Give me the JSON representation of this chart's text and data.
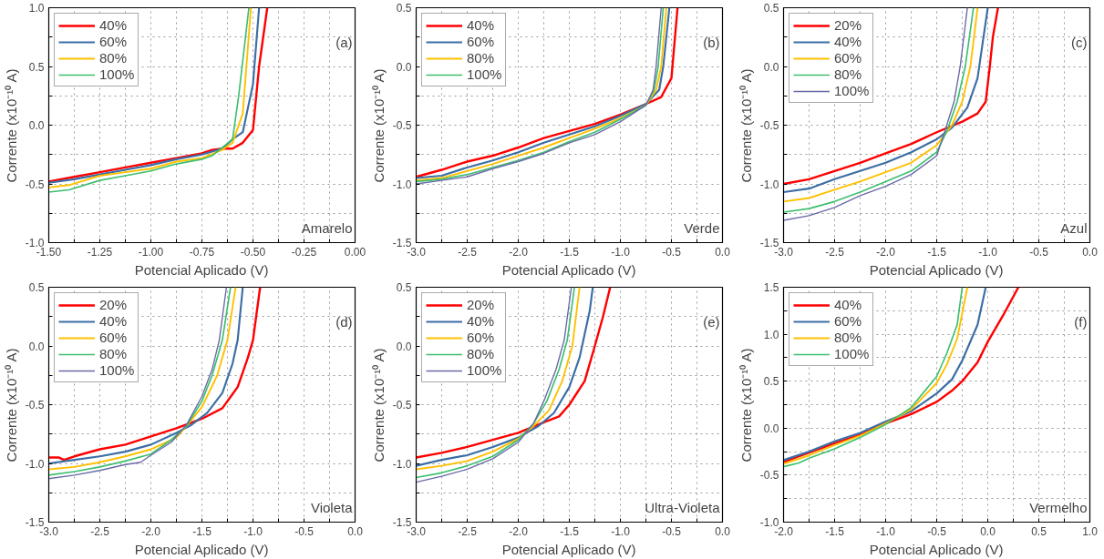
{
  "chart_data": [
    {
      "type": "line",
      "xlabel": "Potencial Aplicado (V)",
      "ylabel": "Corrente (x10⁻¹⁰ A)",
      "annotations": [
        "(a)",
        "Amarelo"
      ],
      "grid": true,
      "legend": "top left",
      "xlim": [
        -1.5,
        0.0
      ],
      "ylim": [
        -1.0,
        1.0
      ],
      "xticks": [
        {
          "value": -1.5,
          "label": "-1.50"
        },
        {
          "value": -1.375,
          "label": null
        },
        {
          "value": -1.25,
          "label": "-1.25"
        },
        {
          "value": -1.125,
          "label": null
        },
        {
          "value": -1.0,
          "label": "-1.00"
        },
        {
          "value": -0.875,
          "label": null
        },
        {
          "value": -0.75,
          "label": "-0.75"
        },
        {
          "value": -0.625,
          "label": null
        },
        {
          "value": -0.5,
          "label": "-0.50"
        },
        {
          "value": -0.375,
          "label": null
        },
        {
          "value": -0.25,
          "label": "-0.25"
        },
        {
          "value": -0.125,
          "label": null
        },
        {
          "value": 0.0,
          "label": "0.00"
        }
      ],
      "yticks": [
        {
          "value": -1.0,
          "label": "-1.0"
        },
        {
          "value": -0.75,
          "label": null
        },
        {
          "value": -0.5,
          "label": "-0.5"
        },
        {
          "value": -0.25,
          "label": null
        },
        {
          "value": 0.0,
          "label": "0.0"
        },
        {
          "value": 0.25,
          "label": null
        },
        {
          "value": 0.5,
          "label": "0.5"
        },
        {
          "value": 0.75,
          "label": null
        },
        {
          "value": 1.0,
          "label": "1.0"
        }
      ],
      "series": [
        {
          "name": "40%",
          "color": "#ff0000",
          "x": [
            -1.5,
            -1.375,
            -1.25,
            -1.125,
            -1.0,
            -0.875,
            -0.75,
            -0.7,
            -0.65,
            -0.6,
            -0.55,
            -0.5,
            -0.47,
            -0.43
          ],
          "values": [
            -0.48,
            -0.44,
            -0.4,
            -0.36,
            -0.32,
            -0.28,
            -0.24,
            -0.21,
            -0.2,
            -0.2,
            -0.15,
            -0.04,
            0.5,
            1.0
          ]
        },
        {
          "name": "60%",
          "color": "#3b6ea5",
          "x": [
            -1.5,
            -1.375,
            -1.25,
            -1.125,
            -1.0,
            -0.875,
            -0.75,
            -0.65,
            -0.6,
            -0.55,
            -0.5,
            -0.47
          ],
          "values": [
            -0.49,
            -0.46,
            -0.42,
            -0.38,
            -0.34,
            -0.29,
            -0.25,
            -0.2,
            -0.12,
            -0.06,
            0.35,
            1.0
          ]
        },
        {
          "name": "80%",
          "color": "#ffc000",
          "x": [
            -1.5,
            -1.4,
            -1.25,
            -1.125,
            -1.0,
            -0.875,
            -0.75,
            -0.65,
            -0.6,
            -0.55,
            -0.51
          ],
          "values": [
            -0.53,
            -0.51,
            -0.43,
            -0.4,
            -0.37,
            -0.31,
            -0.28,
            -0.21,
            -0.15,
            0.1,
            1.0
          ]
        },
        {
          "name": "100%",
          "color": "#3cbf6e",
          "x": [
            -1.5,
            -1.4,
            -1.25,
            -1.125,
            -1.0,
            -0.875,
            -0.75,
            -0.7,
            -0.6,
            -0.57,
            -0.52
          ],
          "values": [
            -0.57,
            -0.55,
            -0.47,
            -0.43,
            -0.39,
            -0.33,
            -0.29,
            -0.26,
            -0.12,
            0.25,
            1.0
          ]
        }
      ]
    },
    {
      "type": "line",
      "xlabel": "Potencial Aplicado (V)",
      "ylabel": "Corrente (x10⁻¹⁰ A)",
      "annotations": [
        "(b)",
        "Verde"
      ],
      "grid": true,
      "legend": "top left",
      "xlim": [
        -3.0,
        0.0
      ],
      "ylim": [
        -1.5,
        0.5
      ],
      "xticks": [
        {
          "value": -3.0,
          "label": "-3.0"
        },
        {
          "value": -2.75,
          "label": null
        },
        {
          "value": -2.5,
          "label": "-2.5"
        },
        {
          "value": -2.25,
          "label": null
        },
        {
          "value": -2.0,
          "label": "-2.0"
        },
        {
          "value": -1.75,
          "label": null
        },
        {
          "value": -1.5,
          "label": "-1.5"
        },
        {
          "value": -1.25,
          "label": null
        },
        {
          "value": -1.0,
          "label": "-1.0"
        },
        {
          "value": -0.75,
          "label": null
        },
        {
          "value": -0.5,
          "label": "-0.5"
        },
        {
          "value": -0.25,
          "label": null
        },
        {
          "value": 0.0,
          "label": "0.0"
        }
      ],
      "yticks": [
        {
          "value": -1.5,
          "label": "-1.5"
        },
        {
          "value": -1.25,
          "label": null
        },
        {
          "value": -1.0,
          "label": "-1.0"
        },
        {
          "value": -0.75,
          "label": null
        },
        {
          "value": -0.5,
          "label": "-0.5"
        },
        {
          "value": -0.25,
          "label": null
        },
        {
          "value": 0.0,
          "label": "0.0"
        },
        {
          "value": 0.25,
          "label": null
        },
        {
          "value": 0.5,
          "label": "0.5"
        }
      ],
      "series": [
        {
          "name": "40%",
          "color": "#ff0000",
          "x": [
            -3.0,
            -2.75,
            -2.5,
            -2.25,
            -2.0,
            -1.75,
            -1.5,
            -1.25,
            -1.0,
            -0.75,
            -0.6,
            -0.5,
            -0.44
          ],
          "values": [
            -0.94,
            -0.88,
            -0.81,
            -0.76,
            -0.69,
            -0.61,
            -0.55,
            -0.49,
            -0.41,
            -0.32,
            -0.26,
            -0.1,
            0.5
          ]
        },
        {
          "name": "60%",
          "color": "#3b6ea5",
          "x": [
            -3.0,
            -2.75,
            -2.5,
            -2.25,
            -2.0,
            -1.75,
            -1.5,
            -1.25,
            -1.0,
            -0.75,
            -0.62,
            -0.58,
            -0.52
          ],
          "values": [
            -0.95,
            -0.93,
            -0.86,
            -0.8,
            -0.73,
            -0.65,
            -0.58,
            -0.51,
            -0.42,
            -0.32,
            -0.2,
            0.0,
            0.5
          ]
        },
        {
          "name": "80%",
          "color": "#ffc000",
          "x": [
            -3.0,
            -2.75,
            -2.5,
            -2.25,
            -2.0,
            -1.75,
            -1.5,
            -1.25,
            -1.0,
            -0.75,
            -0.65,
            -0.6,
            -0.55
          ],
          "values": [
            -0.97,
            -0.95,
            -0.89,
            -0.83,
            -0.76,
            -0.69,
            -0.61,
            -0.53,
            -0.44,
            -0.33,
            -0.2,
            0.0,
            0.5
          ]
        },
        {
          "name": "100%",
          "color": "#3cbf6e",
          "x": [
            -3.0,
            -2.75,
            -2.5,
            -2.25,
            -2.0,
            -1.75,
            -1.5,
            -1.25,
            -1.0,
            -0.75,
            -0.67,
            -0.63,
            -0.58
          ],
          "values": [
            -0.98,
            -0.96,
            -0.92,
            -0.86,
            -0.8,
            -0.73,
            -0.64,
            -0.56,
            -0.45,
            -0.33,
            -0.2,
            0.0,
            0.5
          ]
        },
        {
          "color": "#6a6aa8",
          "x": [
            -3.0,
            -2.75,
            -2.5,
            -2.25,
            -2.0,
            -1.75,
            -1.5,
            -1.25,
            -1.0,
            -0.75,
            -0.68,
            -0.65,
            -0.6
          ],
          "values": [
            -1.0,
            -0.97,
            -0.94,
            -0.87,
            -0.81,
            -0.74,
            -0.65,
            -0.58,
            -0.47,
            -0.33,
            -0.2,
            0.0,
            0.5
          ]
        }
      ]
    },
    {
      "type": "line",
      "xlabel": "Potencial Aplicado (V)",
      "ylabel": "Corrente (x10⁻¹⁰ A)",
      "annotations": [
        "(c)",
        "Azul"
      ],
      "grid": true,
      "legend": "top left",
      "xlim": [
        -3.0,
        0.0
      ],
      "ylim": [
        -1.5,
        0.5
      ],
      "xticks": [
        {
          "value": -3.0,
          "label": "-3.0"
        },
        {
          "value": -2.75,
          "label": null
        },
        {
          "value": -2.5,
          "label": "-2.5"
        },
        {
          "value": -2.25,
          "label": null
        },
        {
          "value": -2.0,
          "label": "-2.0"
        },
        {
          "value": -1.75,
          "label": null
        },
        {
          "value": -1.5,
          "label": "-1.5"
        },
        {
          "value": -1.25,
          "label": null
        },
        {
          "value": -1.0,
          "label": "-1.0"
        },
        {
          "value": -0.75,
          "label": null
        },
        {
          "value": -0.5,
          "label": "-0.5"
        },
        {
          "value": -0.25,
          "label": null
        },
        {
          "value": 0.0,
          "label": "0.0"
        }
      ],
      "yticks": [
        {
          "value": -1.5,
          "label": "-1.5"
        },
        {
          "value": -1.25,
          "label": null
        },
        {
          "value": -1.0,
          "label": "-1.0"
        },
        {
          "value": -0.75,
          "label": null
        },
        {
          "value": -0.5,
          "label": "-0.5"
        },
        {
          "value": -0.25,
          "label": null
        },
        {
          "value": 0.0,
          "label": "0.0"
        },
        {
          "value": 0.25,
          "label": null
        },
        {
          "value": 0.5,
          "label": "0.5"
        }
      ],
      "series": [
        {
          "name": "20%",
          "color": "#ff0000",
          "x": [
            -3.0,
            -2.75,
            -2.5,
            -2.25,
            -2.0,
            -1.75,
            -1.5,
            -1.25,
            -1.1,
            -1.02,
            -0.98,
            -0.95,
            -0.9
          ],
          "values": [
            -1.0,
            -0.96,
            -0.89,
            -0.82,
            -0.74,
            -0.66,
            -0.56,
            -0.47,
            -0.4,
            -0.3,
            0.0,
            0.25,
            0.5
          ]
        },
        {
          "name": "40%",
          "color": "#3b6ea5",
          "x": [
            -3.0,
            -2.75,
            -2.5,
            -2.25,
            -2.0,
            -1.75,
            -1.5,
            -1.35,
            -1.2,
            -1.1,
            -1.05,
            -1.0
          ],
          "values": [
            -1.07,
            -1.04,
            -0.96,
            -0.89,
            -0.82,
            -0.73,
            -0.62,
            -0.52,
            -0.35,
            -0.1,
            0.2,
            0.5
          ]
        },
        {
          "name": "60%",
          "color": "#ffc000",
          "x": [
            -3.0,
            -2.75,
            -2.5,
            -2.25,
            -2.0,
            -1.75,
            -1.5,
            -1.35,
            -1.25,
            -1.17,
            -1.1
          ],
          "values": [
            -1.15,
            -1.12,
            -1.05,
            -0.98,
            -0.9,
            -0.82,
            -0.67,
            -0.5,
            -0.3,
            0.0,
            0.5
          ]
        },
        {
          "name": "80%",
          "color": "#3cbf6e",
          "x": [
            -3.0,
            -2.75,
            -2.5,
            -2.25,
            -2.0,
            -1.75,
            -1.5,
            -1.4,
            -1.3,
            -1.22,
            -1.14
          ],
          "values": [
            -1.24,
            -1.21,
            -1.15,
            -1.07,
            -0.98,
            -0.89,
            -0.73,
            -0.55,
            -0.3,
            0.0,
            0.5
          ]
        },
        {
          "name": "100%",
          "color": "#6a6aa8",
          "x": [
            -3.0,
            -2.75,
            -2.5,
            -2.25,
            -2.0,
            -1.75,
            -1.5,
            -1.42,
            -1.33,
            -1.27,
            -1.2
          ],
          "values": [
            -1.31,
            -1.27,
            -1.2,
            -1.1,
            -1.02,
            -0.92,
            -0.76,
            -0.55,
            -0.3,
            0.0,
            0.5
          ]
        }
      ]
    },
    {
      "type": "line",
      "xlabel": "Potencial Aplicado (V)",
      "ylabel": "Corrente (x10⁻¹⁰ A)",
      "annotations": [
        "(d)",
        "Violeta"
      ],
      "grid": true,
      "legend": "top left",
      "xlim": [
        -3.0,
        0.0
      ],
      "ylim": [
        -1.5,
        0.5
      ],
      "xticks": [
        {
          "value": -3.0,
          "label": "-3.0"
        },
        {
          "value": -2.75,
          "label": null
        },
        {
          "value": -2.5,
          "label": "-2.5"
        },
        {
          "value": -2.25,
          "label": null
        },
        {
          "value": -2.0,
          "label": "-2.0"
        },
        {
          "value": -1.75,
          "label": null
        },
        {
          "value": -1.5,
          "label": "-1.5"
        },
        {
          "value": -1.25,
          "label": null
        },
        {
          "value": -1.0,
          "label": "-1.0"
        },
        {
          "value": -0.75,
          "label": null
        },
        {
          "value": -0.5,
          "label": "-0.5"
        },
        {
          "value": -0.25,
          "label": null
        },
        {
          "value": 0.0,
          "label": "0.0"
        }
      ],
      "yticks": [
        {
          "value": -1.5,
          "label": "-1.5"
        },
        {
          "value": -1.25,
          "label": null
        },
        {
          "value": -1.0,
          "label": "-1.0"
        },
        {
          "value": -0.75,
          "label": null
        },
        {
          "value": -0.5,
          "label": "-0.5"
        },
        {
          "value": -0.25,
          "label": null
        },
        {
          "value": 0.0,
          "label": "0.0"
        },
        {
          "value": 0.25,
          "label": null
        },
        {
          "value": 0.5,
          "label": "0.5"
        }
      ],
      "series": [
        {
          "name": "20%",
          "color": "#ff0000",
          "x": [
            -3.0,
            -2.9,
            -2.85,
            -2.75,
            -2.5,
            -2.25,
            -2.0,
            -1.75,
            -1.5,
            -1.3,
            -1.15,
            -1.05,
            -1.0,
            -0.93
          ],
          "values": [
            -0.95,
            -0.95,
            -0.97,
            -0.94,
            -0.88,
            -0.84,
            -0.77,
            -0.7,
            -0.62,
            -0.53,
            -0.35,
            -0.1,
            0.05,
            0.5
          ]
        },
        {
          "name": "40%",
          "color": "#3b6ea5",
          "x": [
            -3.0,
            -2.75,
            -2.5,
            -2.25,
            -2.0,
            -1.75,
            -1.6,
            -1.45,
            -1.3,
            -1.2,
            -1.15,
            -1.1
          ],
          "values": [
            -1.0,
            -0.97,
            -0.94,
            -0.9,
            -0.84,
            -0.74,
            -0.67,
            -0.57,
            -0.4,
            -0.15,
            0.05,
            0.5
          ]
        },
        {
          "name": "60%",
          "color": "#ffc000",
          "x": [
            -3.0,
            -2.75,
            -2.5,
            -2.25,
            -2.0,
            -1.75,
            -1.65,
            -1.5,
            -1.35,
            -1.25,
            -1.17
          ],
          "values": [
            -1.05,
            -1.03,
            -0.99,
            -0.94,
            -0.88,
            -0.78,
            -0.68,
            -0.52,
            -0.25,
            0.05,
            0.5
          ]
        },
        {
          "name": "80%",
          "color": "#3cbf6e",
          "x": [
            -3.0,
            -2.75,
            -2.5,
            -2.25,
            -2.0,
            -1.8,
            -1.65,
            -1.5,
            -1.4,
            -1.3,
            -1.22
          ],
          "values": [
            -1.1,
            -1.07,
            -1.03,
            -0.98,
            -0.92,
            -0.8,
            -0.68,
            -0.47,
            -0.25,
            0.05,
            0.5
          ]
        },
        {
          "name": "100%",
          "color": "#6a6aa8",
          "x": [
            -3.0,
            -2.75,
            -2.5,
            -2.25,
            -2.1,
            -2.0,
            -1.8,
            -1.65,
            -1.5,
            -1.4,
            -1.33,
            -1.26
          ],
          "values": [
            -1.13,
            -1.1,
            -1.06,
            -1.01,
            -0.99,
            -0.93,
            -0.82,
            -0.67,
            -0.43,
            -0.2,
            0.05,
            0.5
          ]
        }
      ]
    },
    {
      "type": "line",
      "xlabel": "Potencial Aplicado (V)",
      "ylabel": "Corrente (x10⁻¹⁰ A)",
      "annotations": [
        "(e)",
        "Ultra-Violeta"
      ],
      "grid": true,
      "legend": "top left",
      "xlim": [
        -3.0,
        0.0
      ],
      "ylim": [
        -1.5,
        0.5
      ],
      "xticks": [
        {
          "value": -3.0,
          "label": "-3.0"
        },
        {
          "value": -2.75,
          "label": null
        },
        {
          "value": -2.5,
          "label": "-2.5"
        },
        {
          "value": -2.25,
          "label": null
        },
        {
          "value": -2.0,
          "label": "-2.0"
        },
        {
          "value": -1.75,
          "label": null
        },
        {
          "value": -1.5,
          "label": "-1.5"
        },
        {
          "value": -1.25,
          "label": null
        },
        {
          "value": -1.0,
          "label": "-1.0"
        },
        {
          "value": -0.75,
          "label": null
        },
        {
          "value": -0.5,
          "label": "-0.5"
        },
        {
          "value": -0.25,
          "label": null
        },
        {
          "value": 0.0,
          "label": "0.0"
        }
      ],
      "yticks": [
        {
          "value": -1.5,
          "label": "-1.5"
        },
        {
          "value": -1.25,
          "label": null
        },
        {
          "value": -1.0,
          "label": "-1.0"
        },
        {
          "value": -0.75,
          "label": null
        },
        {
          "value": -0.5,
          "label": "-0.5"
        },
        {
          "value": -0.25,
          "label": null
        },
        {
          "value": 0.0,
          "label": "0.0"
        },
        {
          "value": 0.25,
          "label": null
        },
        {
          "value": 0.5,
          "label": "0.5"
        }
      ],
      "series": [
        {
          "name": "20%",
          "color": "#ff0000",
          "x": [
            -3.0,
            -2.75,
            -2.5,
            -2.25,
            -2.0,
            -1.75,
            -1.6,
            -1.5,
            -1.35,
            -1.25,
            -1.17,
            -1.1
          ],
          "values": [
            -0.95,
            -0.91,
            -0.86,
            -0.8,
            -0.74,
            -0.65,
            -0.6,
            -0.5,
            -0.3,
            0.0,
            0.25,
            0.5
          ]
        },
        {
          "name": "40%",
          "color": "#3b6ea5",
          "x": [
            -3.0,
            -2.75,
            -2.5,
            -2.25,
            -2.0,
            -1.8,
            -1.65,
            -1.5,
            -1.4,
            -1.3,
            -1.27
          ],
          "values": [
            -1.02,
            -0.97,
            -0.93,
            -0.86,
            -0.78,
            -0.68,
            -0.57,
            -0.35,
            -0.1,
            0.3,
            0.5
          ]
        },
        {
          "name": "60%",
          "color": "#ffc000",
          "x": [
            -3.0,
            -2.75,
            -2.5,
            -2.25,
            -2.0,
            -1.85,
            -1.7,
            -1.57,
            -1.47,
            -1.4
          ],
          "values": [
            -1.05,
            -1.02,
            -0.98,
            -0.9,
            -0.79,
            -0.68,
            -0.55,
            -0.3,
            0.0,
            0.5
          ]
        },
        {
          "name": "80%",
          "color": "#3cbf6e",
          "x": [
            -3.0,
            -2.75,
            -2.5,
            -2.25,
            -2.0,
            -1.85,
            -1.72,
            -1.6,
            -1.52,
            -1.45
          ],
          "values": [
            -1.12,
            -1.08,
            -1.02,
            -0.94,
            -0.8,
            -0.66,
            -0.47,
            -0.2,
            0.05,
            0.5
          ]
        },
        {
          "name": "100%",
          "color": "#6a6aa8",
          "x": [
            -3.0,
            -2.75,
            -2.5,
            -2.25,
            -2.0,
            -1.85,
            -1.75,
            -1.63,
            -1.55,
            -1.48
          ],
          "values": [
            -1.16,
            -1.11,
            -1.05,
            -0.96,
            -0.82,
            -0.66,
            -0.47,
            -0.2,
            0.05,
            0.5
          ]
        }
      ]
    },
    {
      "type": "line",
      "xlabel": "Potencial Aplicado (V)",
      "ylabel": "Corrente (x10⁻¹⁰ A)",
      "annotations": [
        "(f)",
        "Vermelho"
      ],
      "grid": true,
      "legend": "top left",
      "xlim": [
        -2.0,
        1.0
      ],
      "ylim": [
        -1.0,
        1.5
      ],
      "xticks": [
        {
          "value": -2.0,
          "label": "-2.0"
        },
        {
          "value": -1.75,
          "label": null
        },
        {
          "value": -1.5,
          "label": "-1.5"
        },
        {
          "value": -1.25,
          "label": null
        },
        {
          "value": -1.0,
          "label": "-1.0"
        },
        {
          "value": -0.75,
          "label": null
        },
        {
          "value": -0.5,
          "label": "-0.5"
        },
        {
          "value": -0.25,
          "label": null
        },
        {
          "value": 0.0,
          "label": "0.0"
        },
        {
          "value": 0.25,
          "label": null
        },
        {
          "value": 0.5,
          "label": "0.5"
        },
        {
          "value": 0.75,
          "label": null
        },
        {
          "value": 1.0,
          "label": "1.0"
        }
      ],
      "yticks": [
        {
          "value": -1.0,
          "label": "-1.0"
        },
        {
          "value": -0.75,
          "label": null
        },
        {
          "value": -0.5,
          "label": "-0.5"
        },
        {
          "value": -0.25,
          "label": null
        },
        {
          "value": 0.0,
          "label": "0.0"
        },
        {
          "value": 0.25,
          "label": null
        },
        {
          "value": 0.5,
          "label": "0.5"
        },
        {
          "value": 0.75,
          "label": null
        },
        {
          "value": 1.0,
          "label": "1.0"
        },
        {
          "value": 1.25,
          "label": null
        },
        {
          "value": 1.5,
          "label": "1.5"
        }
      ],
      "series": [
        {
          "name": "40%",
          "color": "#ff0000",
          "x": [
            -2.0,
            -1.75,
            -1.5,
            -1.25,
            -1.0,
            -0.75,
            -0.5,
            -0.35,
            -0.25,
            -0.1,
            0.0,
            0.15,
            0.3
          ],
          "values": [
            -0.36,
            -0.26,
            -0.16,
            -0.07,
            0.05,
            0.15,
            0.28,
            0.4,
            0.5,
            0.7,
            0.92,
            1.2,
            1.5
          ]
        },
        {
          "name": "60%",
          "color": "#3b6ea5",
          "x": [
            -2.0,
            -1.75,
            -1.5,
            -1.25,
            -1.0,
            -0.75,
            -0.5,
            -0.35,
            -0.25,
            -0.1,
            -0.02
          ],
          "values": [
            -0.34,
            -0.25,
            -0.14,
            -0.05,
            0.07,
            0.18,
            0.37,
            0.52,
            0.72,
            1.1,
            1.5
          ]
        },
        {
          "name": "80%",
          "color": "#ffc000",
          "x": [
            -2.0,
            -1.75,
            -1.5,
            -1.25,
            -1.0,
            -0.75,
            -0.5,
            -0.4,
            -0.3,
            -0.2
          ],
          "values": [
            -0.38,
            -0.29,
            -0.18,
            -0.08,
            0.05,
            0.2,
            0.48,
            0.68,
            0.95,
            1.5
          ]
        },
        {
          "name": "100%",
          "color": "#3cbf6e",
          "x": [
            -2.0,
            -1.85,
            -1.75,
            -1.5,
            -1.25,
            -1.0,
            -0.75,
            -0.5,
            -0.4,
            -0.3,
            -0.25
          ],
          "values": [
            -0.41,
            -0.37,
            -0.32,
            -0.22,
            -0.1,
            0.04,
            0.22,
            0.55,
            0.8,
            1.1,
            1.5
          ]
        }
      ]
    }
  ]
}
